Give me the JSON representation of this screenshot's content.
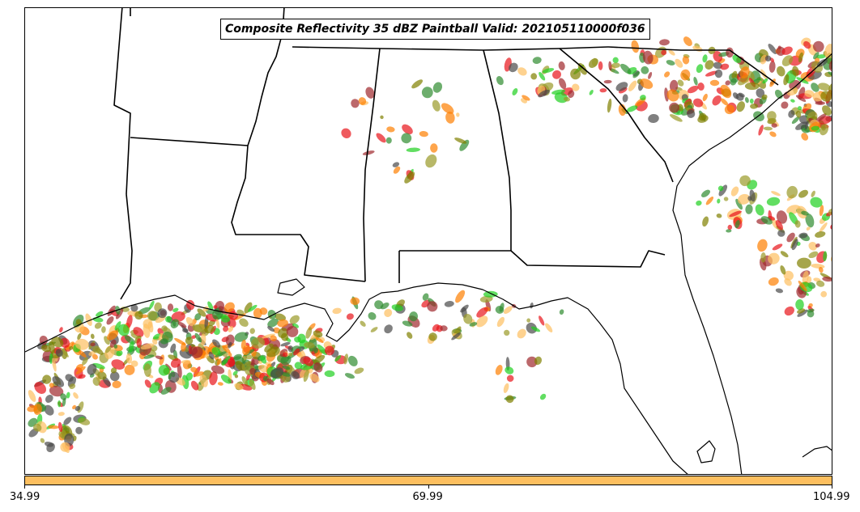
{
  "title": "Composite Reflectivity 35 dBZ Paintball Valid: 202105110000f036",
  "colorbar": {
    "color": "#fdbf5f",
    "ticks": [
      "34.99",
      "69.99",
      "104.99"
    ]
  },
  "member_colors": [
    "#e8141a",
    "#fd7f00",
    "#fdbf5f",
    "#9a9a28",
    "#2f8b2f",
    "#20d020",
    "#4a4a4a",
    "#a0282c",
    "#808000"
  ],
  "map": {
    "region": "Southeastern United States and northern Gulf of Mexico",
    "features": [
      "state-borders",
      "coastline",
      "paintball-cells"
    ]
  }
}
